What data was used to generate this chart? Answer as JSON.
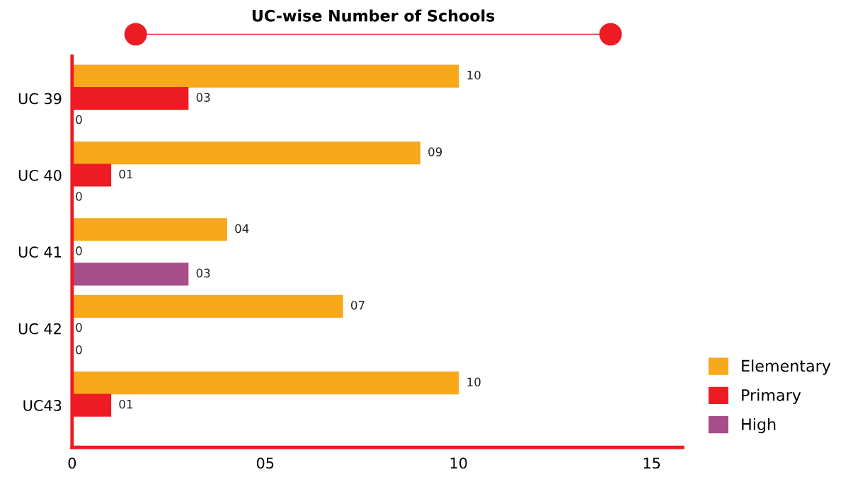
{
  "chart_data": {
    "type": "bar",
    "orientation": "horizontal",
    "title": "UC-wise Number of Schools",
    "categories": [
      "UC 39",
      "UC 40",
      "UC 41",
      "UC 42",
      "UC43"
    ],
    "series": [
      {
        "name": "Elementary",
        "color": "#f7a81b",
        "values": [
          10,
          9,
          4,
          7,
          10
        ],
        "value_labels": [
          "10",
          "09",
          "04",
          "07",
          "10"
        ]
      },
      {
        "name": "Primary",
        "color": "#ed1c24",
        "values": [
          3,
          1,
          0,
          0,
          1
        ],
        "value_labels": [
          "03",
          "01",
          "0",
          "0",
          "01"
        ]
      },
      {
        "name": "High",
        "color": "#a64d8a",
        "values": [
          0,
          0,
          3,
          0,
          null
        ],
        "value_labels": [
          "0",
          "0",
          "03",
          "0",
          null
        ]
      }
    ],
    "xlim": [
      0,
      15.8
    ],
    "xticks": [
      0,
      {
        "value": 5,
        "label": "05"
      },
      10,
      15
    ],
    "grid": false,
    "legend": "bottom right"
  }
}
